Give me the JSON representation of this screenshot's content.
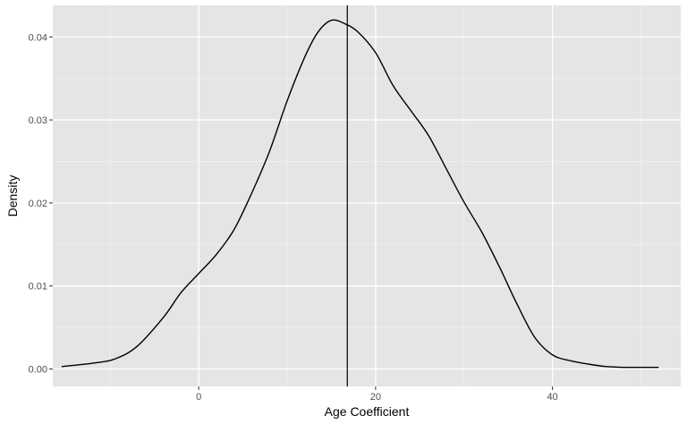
{
  "chart_data": {
    "type": "density",
    "xlabel": "Age Coefficient",
    "ylabel": "Density",
    "title": "",
    "xlim": [
      -16.5,
      54.5
    ],
    "ylim": [
      -0.0021,
      0.0438
    ],
    "x_ticks": [
      0,
      20,
      40
    ],
    "x_tick_labels": [
      "0",
      "20",
      "40"
    ],
    "y_ticks": [
      0.0,
      0.01,
      0.02,
      0.03,
      0.04
    ],
    "y_tick_labels": [
      "0.00",
      "0.01",
      "0.02",
      "0.03",
      "0.04"
    ],
    "grid": true,
    "vline_x": 16.8,
    "series": [
      {
        "x": [
          -15.5,
          -12,
          -9.5,
          -7,
          -4,
          -2,
          0,
          2,
          4,
          6,
          8,
          10,
          12,
          13.5,
          15,
          16.5,
          18,
          20,
          22,
          24,
          26,
          28,
          30,
          32,
          34,
          36,
          38,
          40,
          42,
          44,
          46,
          48,
          50,
          52
        ],
        "y": [
          0.0003,
          0.0007,
          0.0012,
          0.0027,
          0.0062,
          0.0092,
          0.0115,
          0.0138,
          0.0168,
          0.0212,
          0.0262,
          0.0323,
          0.0376,
          0.0406,
          0.042,
          0.0416,
          0.0406,
          0.0381,
          0.0341,
          0.0311,
          0.0281,
          0.0241,
          0.0201,
          0.0165,
          0.0123,
          0.0078,
          0.0038,
          0.0017,
          0.001,
          0.0006,
          0.0003,
          0.0002,
          0.0002,
          0.0002
        ]
      }
    ]
  },
  "colors": {
    "panel_background": "#e5e5e5",
    "grid_major": "#ffffff",
    "grid_minor": "#f2f2f2",
    "line": "#000000",
    "tick_label": "#4d4d4d",
    "tick_mark": "#333333"
  }
}
